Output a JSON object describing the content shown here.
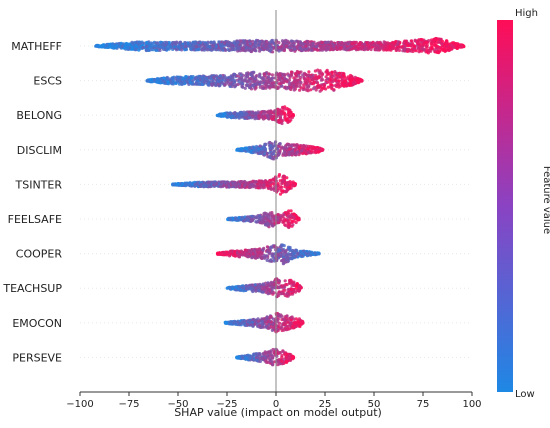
{
  "chart_data": {
    "type": "scatter",
    "subtype": "shap-beeswarm-summary",
    "xlabel": "SHAP value (impact on model output)",
    "xlim": [
      -100,
      100
    ],
    "xticks": [
      "−100",
      "−75",
      "−50",
      "−25",
      "0",
      "25",
      "50",
      "75",
      "100"
    ],
    "xtick_values": [
      -100,
      -75,
      -50,
      -25,
      0,
      25,
      50,
      75,
      100
    ],
    "features": [
      {
        "name": "MATHEFF",
        "min": -92,
        "max": 96,
        "low_side": "negative",
        "density": [
          [
            -92,
            0.05
          ],
          [
            -80,
            0.25
          ],
          [
            -65,
            0.45
          ],
          [
            -50,
            0.35
          ],
          [
            -30,
            0.4
          ],
          [
            -15,
            0.5
          ],
          [
            0,
            0.55
          ],
          [
            15,
            0.45
          ],
          [
            30,
            0.35
          ],
          [
            45,
            0.35
          ],
          [
            60,
            0.4
          ],
          [
            75,
            0.6
          ],
          [
            82,
            0.7
          ],
          [
            90,
            0.35
          ],
          [
            96,
            0.05
          ]
        ]
      },
      {
        "name": "ESCS",
        "min": -66,
        "max": 44,
        "low_side": "negative",
        "density": [
          [
            -66,
            0.05
          ],
          [
            -55,
            0.3
          ],
          [
            -40,
            0.4
          ],
          [
            -25,
            0.5
          ],
          [
            -12,
            0.8
          ],
          [
            0,
            0.7
          ],
          [
            8,
            0.85
          ],
          [
            15,
            0.9
          ],
          [
            22,
            1.0
          ],
          [
            30,
            0.9
          ],
          [
            37,
            0.55
          ],
          [
            44,
            0.05
          ]
        ]
      },
      {
        "name": "BELONG",
        "min": -30,
        "max": 9,
        "low_side": "negative",
        "density": [
          [
            -30,
            0.05
          ],
          [
            -25,
            0.2
          ],
          [
            -15,
            0.3
          ],
          [
            -5,
            0.35
          ],
          [
            0,
            0.5
          ],
          [
            4,
            0.9
          ],
          [
            7,
            0.6
          ],
          [
            9,
            0.05
          ]
        ]
      },
      {
        "name": "DISCLIM",
        "min": -20,
        "max": 24,
        "low_side": "negative",
        "density": [
          [
            -20,
            0.05
          ],
          [
            -14,
            0.2
          ],
          [
            -7,
            0.4
          ],
          [
            -2,
            0.9
          ],
          [
            2,
            0.6
          ],
          [
            8,
            0.5
          ],
          [
            15,
            0.4
          ],
          [
            21,
            0.25
          ],
          [
            24,
            0.05
          ]
        ]
      },
      {
        "name": "TSINTER",
        "min": -53,
        "max": 10,
        "low_side": "negative",
        "density": [
          [
            -53,
            0.04
          ],
          [
            -40,
            0.2
          ],
          [
            -25,
            0.25
          ],
          [
            -10,
            0.3
          ],
          [
            -2,
            0.45
          ],
          [
            2,
            1.0
          ],
          [
            6,
            0.6
          ],
          [
            10,
            0.05
          ]
        ]
      },
      {
        "name": "FEELSAFE",
        "min": -25,
        "max": 12,
        "low_side": "negative",
        "density": [
          [
            -25,
            0.05
          ],
          [
            -15,
            0.2
          ],
          [
            -8,
            0.35
          ],
          [
            -3,
            0.8
          ],
          [
            1,
            0.4
          ],
          [
            4,
            0.55
          ],
          [
            7,
            0.85
          ],
          [
            10,
            0.4
          ],
          [
            12,
            0.05
          ]
        ]
      },
      {
        "name": "COOPER",
        "min": -30,
        "max": 22,
        "low_side": "positive",
        "density": [
          [
            -30,
            0.05
          ],
          [
            -22,
            0.25
          ],
          [
            -14,
            0.35
          ],
          [
            -6,
            0.5
          ],
          [
            -2,
            0.85
          ],
          [
            1,
            0.6
          ],
          [
            4,
            0.95
          ],
          [
            10,
            0.35
          ],
          [
            16,
            0.2
          ],
          [
            22,
            0.05
          ]
        ]
      },
      {
        "name": "TEACHSUP",
        "min": -25,
        "max": 13,
        "low_side": "negative",
        "density": [
          [
            -25,
            0.05
          ],
          [
            -16,
            0.25
          ],
          [
            -8,
            0.35
          ],
          [
            -3,
            0.55
          ],
          [
            0,
            0.9
          ],
          [
            3,
            0.6
          ],
          [
            7,
            0.8
          ],
          [
            11,
            0.45
          ],
          [
            13,
            0.05
          ]
        ]
      },
      {
        "name": "EMOCON",
        "min": -26,
        "max": 14,
        "low_side": "negative",
        "density": [
          [
            -26,
            0.05
          ],
          [
            -18,
            0.2
          ],
          [
            -10,
            0.35
          ],
          [
            -4,
            0.55
          ],
          [
            0,
            0.9
          ],
          [
            4,
            0.7
          ],
          [
            8,
            0.55
          ],
          [
            12,
            0.4
          ],
          [
            14,
            0.05
          ]
        ]
      },
      {
        "name": "PERSEVE",
        "min": -20,
        "max": 9,
        "low_side": "negative",
        "density": [
          [
            -20,
            0.05
          ],
          [
            -13,
            0.25
          ],
          [
            -7,
            0.45
          ],
          [
            -3,
            0.6
          ],
          [
            0,
            0.85
          ],
          [
            4,
            0.55
          ],
          [
            7,
            0.35
          ],
          [
            9,
            0.05
          ]
        ]
      }
    ],
    "colorbar": {
      "label": "Feature value",
      "high_label": "High",
      "low_label": "Low",
      "low_color": "#1e88e5",
      "high_color": "#ff0d57"
    },
    "grid": false,
    "legend": "colorbar-right"
  }
}
